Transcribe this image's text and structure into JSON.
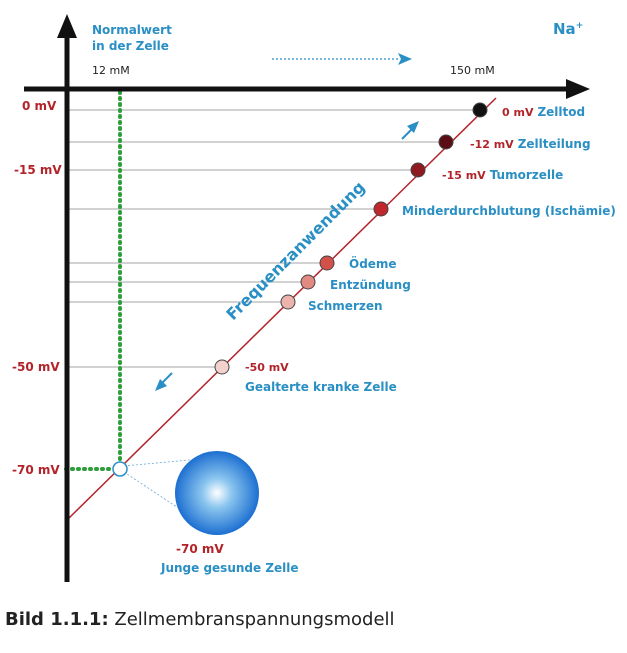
{
  "header": {
    "normal_line1": "Normalwert",
    "normal_line2": "in der Zelle",
    "normal_conc": "12 mM",
    "high_conc": "150 mM",
    "ion": "Na",
    "ion_charge": "+"
  },
  "y_axis_labels": [
    "0 mV",
    "-15 mV",
    "-50 mV",
    "-70 mV"
  ],
  "diagonal_label": "Frequenzanwendung",
  "states": [
    {
      "value": "0 mV",
      "name": "Zelltod",
      "color": "#111111"
    },
    {
      "value": "-12 mV",
      "name": "Zellteilung",
      "color": "#5a0d12"
    },
    {
      "value": "-15 mV",
      "name": "Tumorzelle",
      "color": "#8e1a1f"
    },
    {
      "value": "",
      "name": "Minderdurchblutung (Ischämie)",
      "color": "#c0282d"
    },
    {
      "value": "",
      "name": "Ödeme",
      "color": "#d4504a"
    },
    {
      "value": "",
      "name": "Entzündung",
      "color": "#e08a82"
    },
    {
      "value": "",
      "name": "Schmerzen",
      "color": "#ebb3ac"
    },
    {
      "value": "-50 mV",
      "name": "Gealterte kranke Zelle",
      "color": "#f3d2cd"
    }
  ],
  "healthy_cell": {
    "value": "-70 mV",
    "name": "Junge gesunde Zelle"
  },
  "colors": {
    "axis": "#111111",
    "diagonal": "#b3232a",
    "accent_blue": "#2a8fc4",
    "normal_line": "#2e9e3a",
    "grid": "#888888"
  },
  "caption": {
    "bold": "Bild 1.1.1:",
    "text": " Zellmembranspannungsmodell"
  }
}
